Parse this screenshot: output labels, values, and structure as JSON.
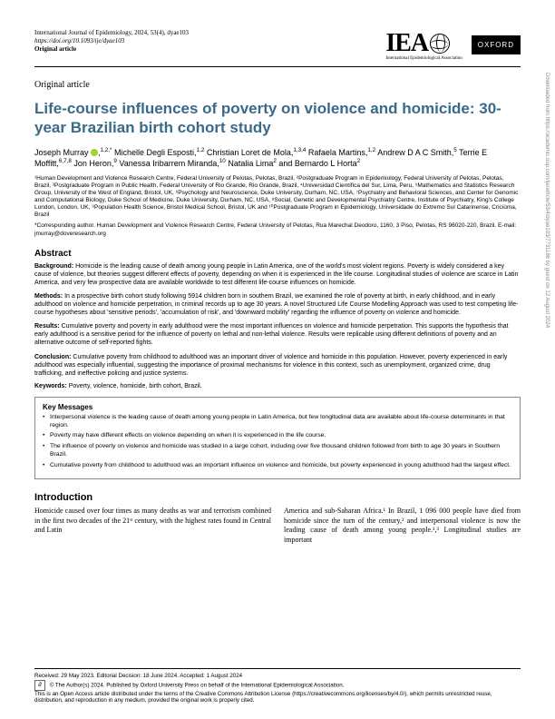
{
  "meta": {
    "journal_line": "International Journal of Epidemiology, 2024, 53(4), dyae103",
    "doi": "https://doi.org/10.1093/ije/dyae103",
    "type_label": "Original article",
    "iea_text": "IEA",
    "iea_sub": "International Epidemiological Association",
    "oxford": "OXFORD"
  },
  "article_type": "Original article",
  "title": "Life-course influences of poverty on violence and homicide: 30-year Brazilian birth cohort study",
  "authors_html": "Joseph Murray <span class='orcid'></span>,<sup>1,2,*</sup> Michelle Degli Esposti,<sup>1,2</sup> Christian Loret de Mola,<sup>1,3,4</sup> Rafaela Martins,<sup>1,2</sup> Andrew D A C Smith,<sup>5</sup> Terrie E Moffitt,<sup>6,7,8</sup> Jon Heron,<sup>9</sup> Vanessa Iribarrem Miranda,<sup>10</sup> Natalia Lima<sup>2</sup> and Bernardo L Horta<sup>2</sup>",
  "affiliations": "¹Human Development and Violence Research Centre, Federal University of Pelotas, Pelotas, Brazil, ²Postgraduate Program in Epidemiology, Federal University of Pelotas, Pelotas, Brazil, ³Postgraduate Program in Public Health, Federal University of Rio Grande, Rio Grande, Brazil, ⁴Universidad Científica del Sur, Lima, Peru, ⁵Mathematics and Statistics Research Group, University of the West of England, Bristol, UK, ⁶Psychology and Neuroscience, Duke University, Durham, NC, USA, ⁷Psychiatry and Behavioral Sciences, and Center for Genomic and Computational Biology, Duke School of Medicine, Duke University, Durham, NC, USA, ⁸Social, Genetic and Developmental Psychiatry Centre, Institute of Psychiatry, King's College London, London, UK, ⁹Population Health Science, Bristol Medical School, Bristol, UK and ¹⁰Postgraduate Program in Epidemiology, Universidade do Extremo Sul Catarinense, Criciúma, Brazil",
  "corresponding": "*Corresponding author. Human Development and Violence Research Centre, Federal University of Pelotas, Rua Marechal Deodoro, 1160, 3 Piso, Pelotas, RS 96020-220, Brazil. E-mail: jmurray@doveresearch.org",
  "abstract_head": "Abstract",
  "abstract": {
    "background": "Homicide is the leading cause of death among young people in Latin America, one of the world's most violent regions. Poverty is widely considered a key cause of violence, but theories suggest different effects of poverty, depending on when it is experienced in the life course. Longitudinal studies of violence are scarce in Latin America, and very few prospective data are available worldwide to test different life-course influences on homicide.",
    "methods": "In a prospective birth cohort study following 5914 children born in southern Brazil, we examined the role of poverty at birth, in early childhood, and in early adulthood on violence and homicide perpetration, in criminal records up to age 30 years. A novel Structured Life Course Modelling Approach was used to test competing life-course hypotheses about 'sensitive periods', 'accumulation of risk', and 'downward mobility' regarding the influence of poverty on violence and homicide.",
    "results": "Cumulative poverty and poverty in early adulthood were the most important influences on violence and homicide perpetration. This supports the hypothesis that early adulthood is a sensitive period for the influence of poverty on lethal and non-lethal violence. Results were replicable using different definitions of poverty and an alternative outcome of self-reported fights.",
    "conclusion": "Cumulative poverty from childhood to adulthood was an important driver of violence and homicide in this population. However, poverty experienced in early adulthood was especially influential, suggesting the importance of proximal mechanisms for violence in this context, such as unemployment, organized crime, drug trafficking, and ineffective policing and justice systems."
  },
  "keywords_label": "Keywords:",
  "keywords": "Poverty, violence, homicide, birth cohort, Brazil.",
  "keymsg_head": "Key Messages",
  "keymsg": [
    "Interpersonal violence is the leading cause of death among young people in Latin America, but few longitudinal data are available about life-course determinants in that region.",
    "Poverty may have different effects on violence depending on when it is experienced in the life course.",
    "The influence of poverty on violence and homicide was studied in a large cohort, including over five thousand children followed from birth to age 30 years in Southern Brazil.",
    "Cumulative poverty from childhood to adulthood was an important influence on violence and homicide, but poverty experienced in young adulthood had the largest effect."
  ],
  "intro_head": "Introduction",
  "intro_col1": "Homicide caused over four times as many deaths as war and terrorism combined in the first two decades of the 21ˢᵗ century, with the highest rates found in Central and Latin",
  "intro_col2": "America and sub-Saharan Africa.¹ In Brazil, 1 096 000 people have died from homicide since the turn of the century,² and interpersonal violence is now the leading cause of death among young people.¹,³ Longitudinal studies are important",
  "footer": {
    "received": "Received: 29 May 2023. Editorial Decision: 18 June 2024. Accepted: 1 August 2024",
    "copyright": "© The Author(s) 2024. Published by Oxford University Press on behalf of the International Epidemiological Association.",
    "license": "This is an Open Access article distributed under the terms of the Creative Commons Attribution License (https://creativecommons.org/licenses/by/4.0/), which permits unrestricted reuse, distribution, and reproduction in any medium, provided the original work is properly cited."
  },
  "sidetext": "Downloaded from https://academic.oup.com/ije/article/53/4/dyae103/7731186 by guest on 12 August 2024",
  "colors": {
    "title": "#3a6a8a",
    "orcid": "#a6ce39",
    "text": "#000000",
    "border": "#888888"
  }
}
